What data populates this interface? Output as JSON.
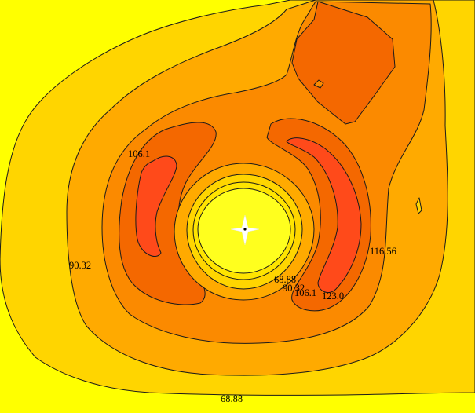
{
  "map": {
    "kind": "isoline contour map",
    "levels": [
      "68.88",
      "90.32",
      "106.1",
      "116.56",
      "123.0"
    ],
    "colors": {
      "background": "#ffff00",
      "band_1": "#ffd500",
      "band_2": "#ffaa00",
      "band_3": "#fb8a00",
      "band_4": "#f46800",
      "band_5": "#ff4a1a",
      "center": "#ffff1e",
      "marker": "#ffffff"
    },
    "labels": {
      "outer_bottom": "68.88",
      "outer_left": "90.32",
      "upper_left": "106.1",
      "right": "116.56",
      "inner_1": "68.88",
      "inner_2": "90.32",
      "inner_3": "106.1",
      "inner_4": "123.0"
    },
    "center_marker_icon": "crosshair-star-icon"
  }
}
